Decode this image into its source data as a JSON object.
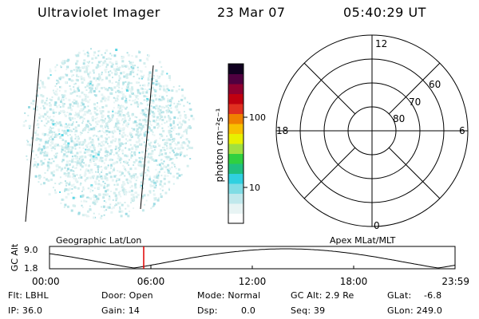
{
  "header": {
    "instrument": "Ultraviolet Imager",
    "date": "23 Mar 07",
    "time": "05:40:29 UT"
  },
  "colorbar": {
    "unit_label": "photon cm⁻²s⁻¹",
    "tick_100": "100",
    "tick_10": "10",
    "colors": [
      "#ffffff",
      "#e8f4f4",
      "#c0e8ec",
      "#80dce4",
      "#30d0e0",
      "#20c080",
      "#30d040",
      "#a0e040",
      "#e8f000",
      "#f8c000",
      "#f08000",
      "#e03020",
      "#c00010",
      "#900030",
      "#500040",
      "#100020"
    ]
  },
  "polar": {
    "label_top": "12",
    "label_bottom": "0",
    "label_left": "18",
    "label_right": "6",
    "lat_60": "60",
    "lat_70": "70",
    "lat_80": "80"
  },
  "orbit": {
    "ylabel": "GC Alt",
    "ytick_top": "9.0",
    "ytick_bottom": "1.8",
    "left_title": "Geographic Lat/Lon",
    "right_title": "Apex MLat/MLT",
    "xticks": [
      "00:00",
      "06:00",
      "12:00",
      "18:00",
      "23:59"
    ],
    "marker_color": "#e00000"
  },
  "info": {
    "flt": "Flt: LBHL",
    "ip": "IP: 36.0",
    "door": "Door: Open",
    "gain": "Gain: 14",
    "mode": "Mode: Normal",
    "dsp_label": "Dsp:",
    "dsp_value": "0.0",
    "gcalt": "GC Alt: 2.9 Re",
    "seq": "Seq: 39",
    "glat_label": "GLat:",
    "glat_value": "-6.8",
    "glon": "GLon: 249.0"
  }
}
